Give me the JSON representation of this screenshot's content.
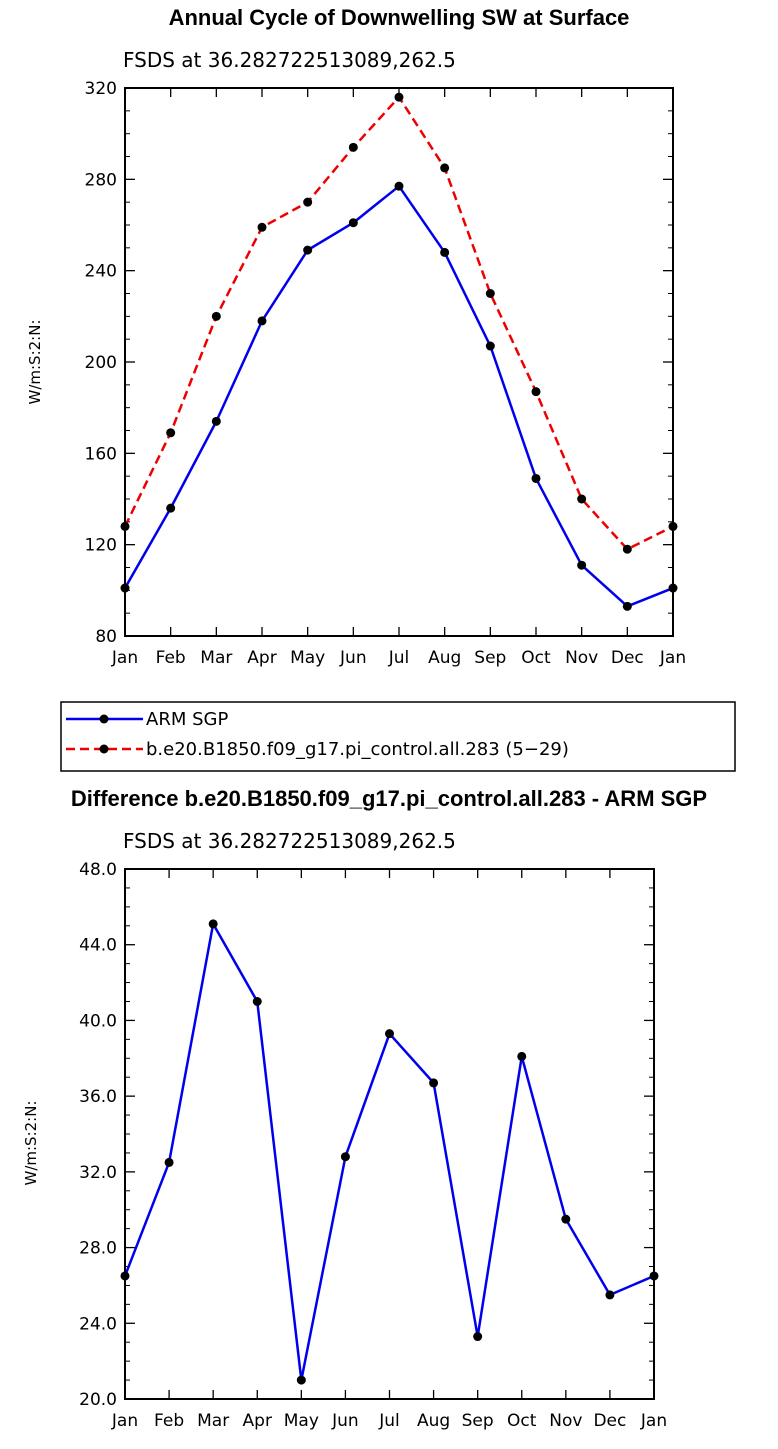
{
  "colors": {
    "obs": "#0000ee",
    "model": "#ee0000",
    "marker": "#000000"
  },
  "chart_data": [
    {
      "type": "line",
      "title": "Annual Cycle of Downwelling SW at Surface",
      "subtitle": "FSDS at 36.282722513089,262.5",
      "ylabel": "W/m:S:2:N:",
      "xlabel": "",
      "categories": [
        "Jan",
        "Feb",
        "Mar",
        "Apr",
        "May",
        "Jun",
        "Jul",
        "Aug",
        "Sep",
        "Oct",
        "Nov",
        "Dec",
        "Jan"
      ],
      "ylim": [
        80,
        320
      ],
      "yticks": [
        "80",
        "120",
        "160",
        "200",
        "240",
        "280",
        "320"
      ],
      "series": [
        {
          "name": "ARM SGP",
          "style": "solid",
          "color": "#0000ee",
          "values": [
            101,
            136,
            174,
            218,
            249,
            261,
            277,
            248,
            207,
            149,
            111,
            93,
            101
          ]
        },
        {
          "name": "b.e20.B1850.f09_g17.pi_control.all.283 (5−29)",
          "style": "dashed",
          "color": "#ee0000",
          "values": [
            128,
            169,
            220,
            259,
            270,
            294,
            316,
            285,
            230,
            187,
            140,
            118,
            128
          ]
        }
      ],
      "legend": "below"
    },
    {
      "type": "line",
      "title": "Difference b.e20.B1850.f09_g17.pi_control.all.283 - ARM SGP",
      "subtitle": "FSDS at 36.282722513089,262.5",
      "ylabel": "W/m:S:2:N:",
      "xlabel": "",
      "categories": [
        "Jan",
        "Feb",
        "Mar",
        "Apr",
        "May",
        "Jun",
        "Jul",
        "Aug",
        "Sep",
        "Oct",
        "Nov",
        "Dec",
        "Jan"
      ],
      "ylim": [
        20,
        48
      ],
      "yticks": [
        "20.0",
        "24.0",
        "28.0",
        "32.0",
        "36.0",
        "40.0",
        "44.0",
        "48.0"
      ],
      "series": [
        {
          "style": "solid",
          "color": "#0000ee",
          "values": [
            26.5,
            32.5,
            45.1,
            41.0,
            21.0,
            32.8,
            39.3,
            36.7,
            23.3,
            38.1,
            29.5,
            25.5,
            26.5
          ]
        }
      ]
    }
  ]
}
